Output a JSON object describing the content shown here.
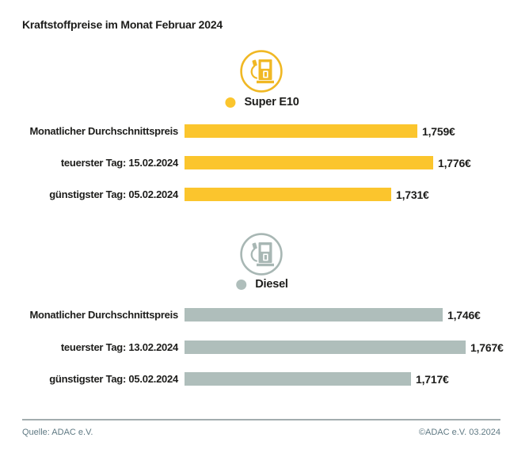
{
  "title": "Kraftstoffpreise im Monat Februar 2024",
  "colors": {
    "text": "#1d1d1b",
    "super_e10": "#fbc52d",
    "super_e10_icon": "#f0b824",
    "diesel": "#afbebb",
    "diesel_icon": "#a8b7b4",
    "divider": "#a2adaf",
    "footer_text": "#5f7983"
  },
  "sections": [
    {
      "id": "super-e10",
      "legend_label": "Super E10",
      "icon": "fuel-pump-icon",
      "rows": [
        {
          "label": "Monatlicher Durchschnittspreis",
          "value_display": "1,759€"
        },
        {
          "label": "teuerster Tag: 15.02.2024",
          "value_display": "1,776€"
        },
        {
          "label": "günstigster Tag: 05.02.2024",
          "value_display": "1,731€"
        }
      ]
    },
    {
      "id": "diesel",
      "legend_label": "Diesel",
      "icon": "fuel-pump-icon",
      "rows": [
        {
          "label": "Monatlicher Durchschnittspreis",
          "value_display": "1,746€"
        },
        {
          "label": "teuerster Tag: 13.02.2024",
          "value_display": "1,767€"
        },
        {
          "label": "günstigster Tag: 05.02.2024",
          "value_display": "1,717€"
        }
      ]
    }
  ],
  "footer": {
    "source": "Quelle: ADAC e.V.",
    "copyright": "©ADAC e.V. 03.2024"
  },
  "chart_data": [
    {
      "type": "bar",
      "orientation": "horizontal",
      "title": "Super E10",
      "categories": [
        "Monatlicher Durchschnittspreis",
        "teuerster Tag: 15.02.2024",
        "günstigster Tag: 05.02.2024"
      ],
      "values": [
        1.759,
        1.776,
        1.731
      ],
      "value_labels": [
        "1,759€",
        "1,776€",
        "1,731€"
      ],
      "xlim": [
        1.51,
        1.776
      ],
      "color": "#fbc52d",
      "grid": false,
      "legend_position": "top-center"
    },
    {
      "type": "bar",
      "orientation": "horizontal",
      "title": "Diesel",
      "categories": [
        "Monatlicher Durchschnittspreis",
        "teuerster Tag: 13.02.2024",
        "günstigster Tag: 05.02.2024"
      ],
      "values": [
        1.746,
        1.767,
        1.717
      ],
      "value_labels": [
        "1,746€",
        "1,767€",
        "1,717€"
      ],
      "xlim": [
        1.51,
        1.767
      ],
      "color": "#afbebb",
      "grid": false,
      "legend_position": "top-center"
    }
  ]
}
